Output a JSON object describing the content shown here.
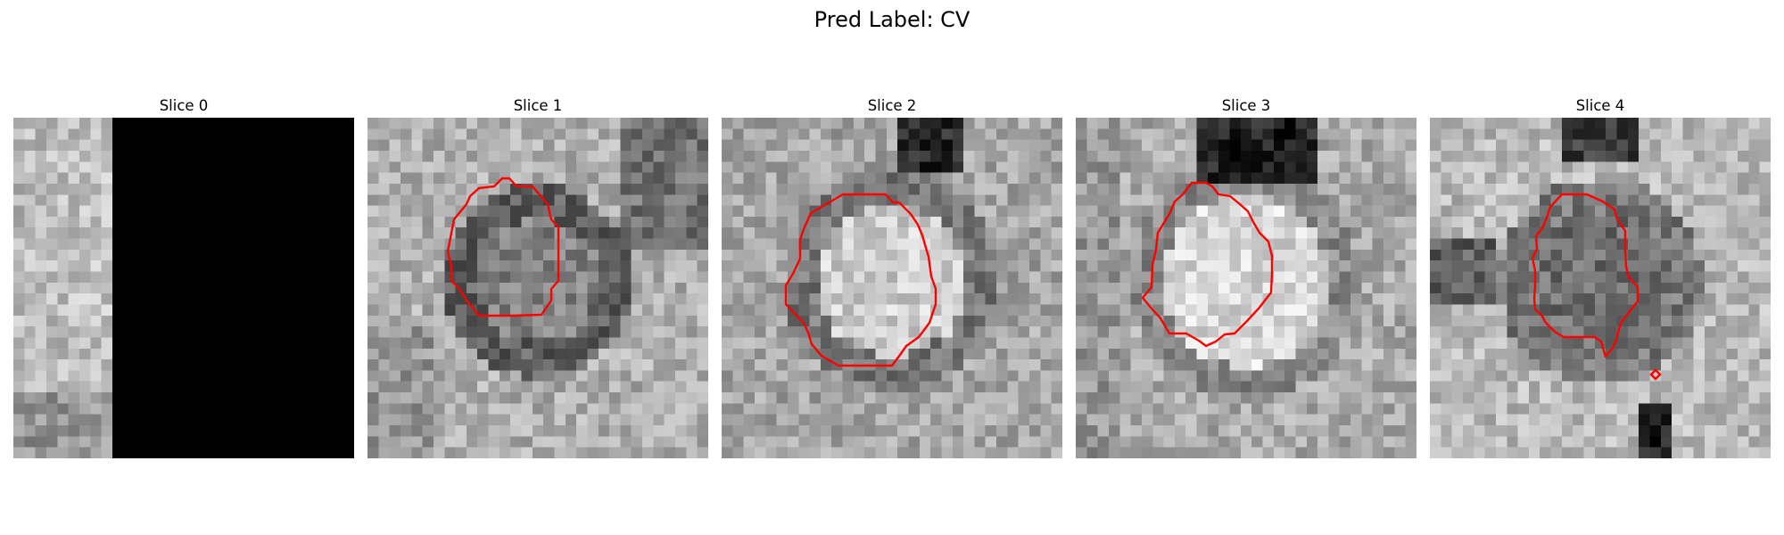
{
  "figure": {
    "title": "Pred Label: CV"
  },
  "slices": [
    {
      "title": "Slice 0",
      "has_contour": false,
      "masked_from_column": 9,
      "seed": 11
    },
    {
      "title": "Slice 1",
      "has_contour": true,
      "seed": 23
    },
    {
      "title": "Slice 2",
      "has_contour": true,
      "seed": 37
    },
    {
      "title": "Slice 3",
      "has_contour": true,
      "seed": 41
    },
    {
      "title": "Slice 4",
      "has_contour": true,
      "seed": 53
    }
  ],
  "colors": {
    "contour": "#ff0000",
    "mask": "#000000",
    "background": "#ffffff"
  },
  "image": {
    "grid_size": 31,
    "colormap": "grayscale"
  }
}
